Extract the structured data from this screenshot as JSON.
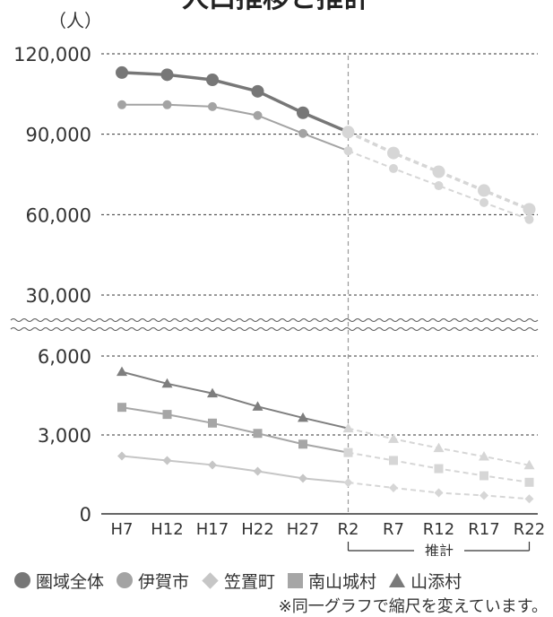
{
  "chart_data": {
    "type": "line",
    "title": "人口推移と推計",
    "ylabel": "（人）",
    "x": [
      "H7",
      "H12",
      "H17",
      "H22",
      "H27",
      "R2",
      "R7",
      "R12",
      "R17",
      "R22"
    ],
    "projection_label": "推計",
    "projection_start": "R2",
    "upper_panel": {
      "ylim": [
        30000,
        120000
      ],
      "yticks": [
        "120,000",
        "90,000",
        "60,000",
        "30,000"
      ],
      "series": [
        {
          "name": "圏域全体",
          "marker": "circle",
          "values": [
            113000,
            112200,
            110300,
            106000,
            98000,
            90800,
            83000,
            76000,
            69000,
            62000
          ]
        },
        {
          "name": "伊賀市",
          "marker": "circle",
          "values": [
            101000,
            101000,
            100300,
            97000,
            90300,
            83800,
            77200,
            70800,
            64500,
            58200
          ]
        }
      ]
    },
    "lower_panel": {
      "ylim": [
        0,
        6000
      ],
      "yticks": [
        "6,000",
        "3,000",
        "0"
      ],
      "series": [
        {
          "name": "山添村",
          "marker": "triangle",
          "values": [
            5400,
            4950,
            4580,
            4080,
            3650,
            3250,
            2850,
            2500,
            2180,
            1850
          ]
        },
        {
          "name": "南山城村",
          "marker": "square",
          "values": [
            4050,
            3780,
            3450,
            3060,
            2650,
            2330,
            2030,
            1720,
            1450,
            1200
          ]
        },
        {
          "name": "笠置町",
          "marker": "diamond",
          "values": [
            2200,
            2030,
            1860,
            1620,
            1350,
            1190,
            990,
            800,
            700,
            570
          ]
        }
      ]
    },
    "legend": [
      "圏域全体",
      "伊賀市",
      "笠置町",
      "南山城村",
      "山添村"
    ],
    "grid": true,
    "axis_break": true
  },
  "colors": {
    "圏域全体": "#777777",
    "伊賀市": "#a3a3a3",
    "山添村": "#7e7e7e",
    "南山城村": "#a6a6a6",
    "笠置町": "#c6c6c6",
    "projection": "#d6d6d6"
  },
  "legend_items": [
    {
      "label": "圏域全体",
      "marker": "circle",
      "color": "#777777"
    },
    {
      "label": "伊賀市",
      "marker": "circle",
      "color": "#a3a3a3"
    },
    {
      "label": "笠置町",
      "marker": "diamond",
      "color": "#c6c6c6"
    },
    {
      "label": "南山城村",
      "marker": "square",
      "color": "#a6a6a6"
    },
    {
      "label": "山添村",
      "marker": "triangle",
      "color": "#7e7e7e"
    }
  ],
  "note": "※同一グラフで縮尺を変えています。"
}
